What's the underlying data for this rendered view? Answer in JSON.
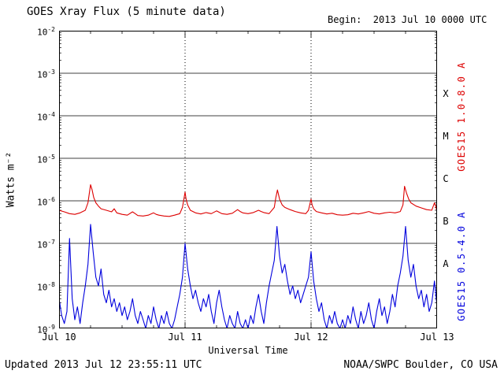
{
  "title": "GOES Xray Flux (5 minute data)",
  "begin_label": "Begin:  2013 Jul 10 0000 UTC",
  "footer": {
    "updated": "Updated 2013 Jul 12 23:55:11 UTC",
    "credit": "NOAA/SWPC Boulder, CO USA"
  },
  "axes": {
    "ylabel": "Watts m⁻²",
    "xlabel": "Universal Time",
    "right_label_red": "GOES15 1.0-8.0 A",
    "right_label_blue": "GOES15 0.5-4.0 A",
    "flare_classes": [
      "X",
      "M",
      "C",
      "B",
      "A"
    ]
  },
  "colors": {
    "red": "#dd0000",
    "blue": "#0000dd",
    "frame": "#000000"
  },
  "chart_data": {
    "type": "line",
    "title": "GOES Xray Flux (5 minute data)",
    "xlabel": "Universal Time",
    "ylabel": "Watts m⁻²",
    "x_unit": "hours after 2013 Jul 10 0000 UTC",
    "xlim": [
      0,
      72
    ],
    "ylim_log10": [
      -9,
      -2
    ],
    "x_tick_labels": [
      "Jul 10",
      "Jul 11",
      "Jul 12",
      "Jul 13"
    ],
    "y_tick_exponents": [
      -2,
      -3,
      -4,
      -5,
      -6,
      -7,
      -8,
      -9
    ],
    "grid_decades_log10": [
      -3,
      -4,
      -5,
      -6,
      -7,
      -8
    ],
    "day_boundaries_hours": [
      24,
      48
    ],
    "x_minor_tick_hours": 6,
    "grid": "solid horizontal lines at each decade, dotted vertical lines at day boundaries",
    "legend_position": "right-side rotated labels",
    "series": [
      {
        "name": "GOES15 1.0-8.0 A",
        "color": "#dd0000",
        "t_hours": [
          0,
          1,
          2,
          3,
          4,
          5,
          5.5,
          6,
          6.3,
          6.6,
          7,
          7.5,
          8,
          9,
          10,
          10.5,
          11,
          12,
          13,
          14,
          14.5,
          15,
          16,
          17,
          18,
          18.5,
          19,
          20,
          21,
          22,
          23,
          23.5,
          24,
          24.2,
          24.5,
          25,
          26,
          27,
          28,
          29,
          30,
          30.5,
          31,
          32,
          33,
          34,
          34.5,
          35,
          36,
          37,
          38,
          38.5,
          39,
          40,
          41,
          41.3,
          41.6,
          42,
          42.5,
          43,
          44,
          45,
          46,
          47,
          47.5,
          48,
          48.2,
          48.5,
          49,
          50,
          51,
          52,
          53,
          54,
          55,
          56,
          57,
          58,
          59,
          60,
          61,
          62,
          63,
          64,
          65,
          65.5,
          65.8,
          66.2,
          66.6,
          67,
          68,
          69,
          70,
          71,
          71.5,
          71.8,
          72
        ],
        "flux": [
          6e-07,
          5.5e-07,
          5e-07,
          4.8e-07,
          5.2e-07,
          6e-07,
          9e-07,
          2.4e-06,
          1.8e-06,
          1.2e-06,
          9e-07,
          7.5e-07,
          6.5e-07,
          6e-07,
          5.5e-07,
          6.5e-07,
          5.2e-07,
          4.8e-07,
          4.6e-07,
          5.5e-07,
          5e-07,
          4.5e-07,
          4.4e-07,
          4.6e-07,
          5.2e-07,
          4.8e-07,
          4.6e-07,
          4.4e-07,
          4.3e-07,
          4.6e-07,
          5e-07,
          7e-07,
          1.6e-06,
          1.1e-06,
          8e-07,
          6e-07,
          5.2e-07,
          4.9e-07,
          5.3e-07,
          5e-07,
          5.8e-07,
          5.4e-07,
          5e-07,
          4.8e-07,
          5.1e-07,
          6.2e-07,
          5.6e-07,
          5.2e-07,
          5e-07,
          5.3e-07,
          6e-07,
          5.6e-07,
          5.3e-07,
          5e-07,
          7e-07,
          1.2e-06,
          1.8e-06,
          1.1e-06,
          8e-07,
          7e-07,
          6.2e-07,
          5.6e-07,
          5.2e-07,
          5e-07,
          6e-07,
          1.1e-06,
          8e-07,
          6.5e-07,
          5.6e-07,
          5.2e-07,
          4.9e-07,
          5.1e-07,
          4.7e-07,
          4.6e-07,
          4.7e-07,
          5.1e-07,
          4.9e-07,
          5.2e-07,
          5.6e-07,
          5.1e-07,
          4.9e-07,
          5.2e-07,
          5.4e-07,
          5.2e-07,
          5.6e-07,
          8e-07,
          2.2e-06,
          1.5e-06,
          1.1e-06,
          9e-07,
          7.5e-07,
          6.8e-07,
          6.2e-07,
          6e-07,
          9e-07,
          7e-07,
          5.5e-07
        ]
      },
      {
        "name": "GOES15 0.5-4.0 A",
        "color": "#0000dd",
        "t_start": 0,
        "t_step": 0.5,
        "flux": [
          5e-09,
          2e-09,
          1.3e-09,
          2.5e-09,
          1.3e-07,
          5e-09,
          1.6e-09,
          3.2e-09,
          1.3e-09,
          4e-09,
          1e-08,
          3.2e-08,
          2.8e-07,
          6.3e-08,
          1.6e-08,
          1e-08,
          2.5e-08,
          6.3e-09,
          4e-09,
          7.9e-09,
          3.2e-09,
          5e-09,
          2.5e-09,
          4e-09,
          2e-09,
          3.2e-09,
          1.6e-09,
          2.5e-09,
          5e-09,
          2e-09,
          1.3e-09,
          2.5e-09,
          1.6e-09,
          1e-09,
          2e-09,
          1.3e-09,
          3.2e-09,
          1.6e-09,
          1e-09,
          2e-09,
          1.3e-09,
          2.5e-09,
          1.3e-09,
          1e-09,
          1.6e-09,
          3.2e-09,
          6.3e-09,
          1.6e-08,
          1e-07,
          2.5e-08,
          1e-08,
          5e-09,
          7.9e-09,
          4e-09,
          2.5e-09,
          5e-09,
          3.2e-09,
          6.3e-09,
          2.5e-09,
          1.3e-09,
          4e-09,
          7.9e-09,
          3.2e-09,
          1.6e-09,
          1e-09,
          2e-09,
          1.3e-09,
          1e-09,
          2.5e-09,
          1.3e-09,
          1e-09,
          1.6e-09,
          1e-09,
          2e-09,
          1.3e-09,
          3.2e-09,
          6.3e-09,
          2.5e-09,
          1.3e-09,
          4e-09,
          1e-08,
          2e-08,
          4e-08,
          2.5e-07,
          5e-08,
          2e-08,
          3.2e-08,
          1.3e-08,
          6.3e-09,
          1e-08,
          5e-09,
          7.9e-09,
          4e-09,
          6.3e-09,
          1e-08,
          1.6e-08,
          6.3e-08,
          1.3e-08,
          5e-09,
          2.5e-09,
          4e-09,
          1.6e-09,
          1e-09,
          2e-09,
          1.3e-09,
          2.5e-09,
          1.3e-09,
          1e-09,
          1.6e-09,
          1e-09,
          2e-09,
          1.3e-09,
          3.2e-09,
          1.6e-09,
          1e-09,
          2.5e-09,
          1.3e-09,
          2e-09,
          4e-09,
          1.6e-09,
          1e-09,
          2.5e-09,
          5e-09,
          2e-09,
          3.2e-09,
          1.3e-09,
          2.5e-09,
          6.3e-09,
          3.2e-09,
          1e-08,
          2e-08,
          5e-08,
          2.5e-07,
          4e-08,
          1.6e-08,
          3.2e-08,
          1e-08,
          5e-09,
          7.9e-09,
          3.2e-09,
          6.3e-09,
          2.5e-09,
          4e-09,
          1.3e-08,
          3.2e-09
        ]
      }
    ]
  }
}
